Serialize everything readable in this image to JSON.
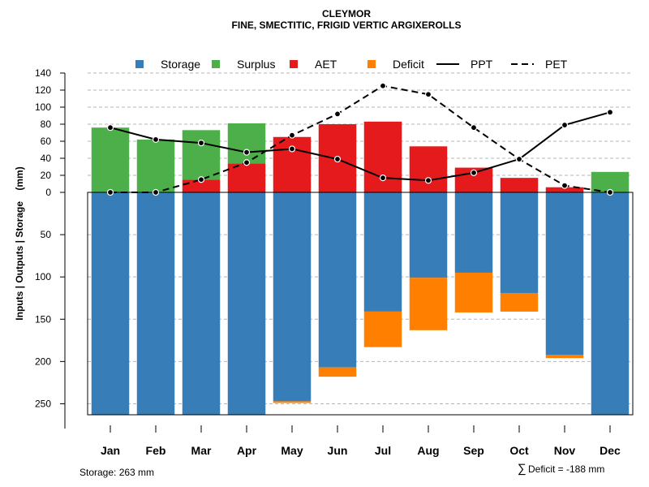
{
  "chart_data": {
    "type": "bar",
    "title": "CLEYMOR",
    "subtitle": "FINE, SMECTITIC, FRIGID VERTIC ARGIXEROLLS",
    "ylabel": "Inputs | Outputs | Storage    (mm)",
    "categories": [
      "Jan",
      "Feb",
      "Mar",
      "Apr",
      "May",
      "Jun",
      "Jul",
      "Aug",
      "Sep",
      "Oct",
      "Nov",
      "Dec"
    ],
    "upper_ticks": [
      0,
      20,
      40,
      60,
      80,
      100,
      120,
      140
    ],
    "lower_ticks": [
      50,
      100,
      150,
      200,
      250
    ],
    "upper_ylim": [
      0,
      140
    ],
    "lower_ylim": [
      0,
      263
    ],
    "legend": [
      {
        "name": "Storage",
        "kind": "box",
        "color": "#377eb8"
      },
      {
        "name": "Surplus",
        "kind": "box",
        "color": "#4daf4a"
      },
      {
        "name": "AET",
        "kind": "box",
        "color": "#e41a1c"
      },
      {
        "name": "Deficit",
        "kind": "box",
        "color": "#ff7f00"
      },
      {
        "name": "PPT",
        "kind": "solid",
        "color": "#000000"
      },
      {
        "name": "PET",
        "kind": "dashed",
        "color": "#000000"
      }
    ],
    "series": [
      {
        "name": "Surplus",
        "color": "#4daf4a",
        "values": [
          76,
          62,
          58,
          47,
          0,
          0,
          0,
          0,
          0,
          0,
          0,
          24
        ]
      },
      {
        "name": "AET",
        "color": "#e41a1c",
        "values": [
          0,
          0,
          15,
          34,
          65,
          80,
          83,
          54,
          29,
          17,
          6,
          0
        ]
      },
      {
        "name": "Storage",
        "color": "#377eb8",
        "values": [
          263,
          263,
          263,
          263,
          247,
          207,
          141,
          101,
          95,
          119,
          192,
          263
        ]
      },
      {
        "name": "Deficit",
        "color": "#ff7f00",
        "values": [
          0,
          0,
          0,
          0,
          2,
          11,
          42,
          62,
          47,
          22,
          4,
          0
        ]
      },
      {
        "name": "PPT",
        "color": "#000000",
        "values": [
          76,
          62,
          58,
          47,
          51,
          39,
          17,
          14,
          23,
          39,
          79,
          94
        ]
      },
      {
        "name": "PET",
        "color": "#000000",
        "values": [
          0,
          0,
          15,
          35,
          67,
          92,
          125,
          115,
          76,
          39,
          8,
          0
        ]
      }
    ],
    "footer_storage": "Storage: 263 mm",
    "footer_deficit_symbol": "∑",
    "footer_deficit": "Deficit = -188 mm"
  }
}
